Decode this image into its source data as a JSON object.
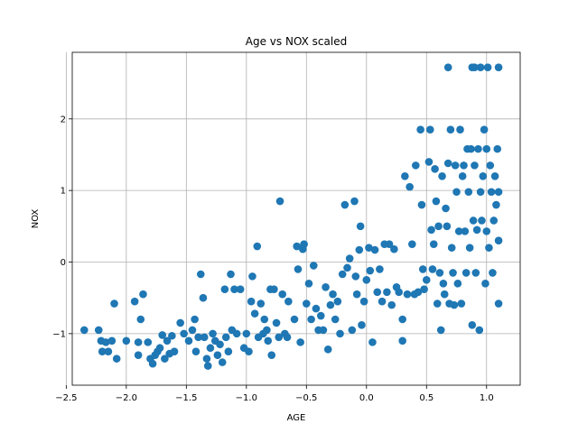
{
  "chart_data": {
    "type": "scatter",
    "title": "Age vs NOX scaled",
    "xlabel": "AGE",
    "ylabel": "NOX",
    "xlim": [
      -2.45,
      1.28
    ],
    "ylim": [
      -1.72,
      2.93
    ],
    "xticks": [
      -2.5,
      -2.0,
      -1.5,
      -1.0,
      -0.5,
      0.0,
      0.5,
      1.0
    ],
    "xtick_labels": [
      "−2.5",
      "−2.0",
      "−1.5",
      "−1.0",
      "−0.5",
      "0.0",
      "0.5",
      "1.0"
    ],
    "yticks": [
      -1,
      0,
      1,
      2
    ],
    "ytick_labels": [
      "−1",
      "0",
      "1",
      "2"
    ],
    "grid": true,
    "point_color": "#1f77b4",
    "points": [
      [
        -2.35,
        -0.95
      ],
      [
        -2.23,
        -0.95
      ],
      [
        -2.21,
        -1.1
      ],
      [
        -2.2,
        -1.25
      ],
      [
        -2.17,
        -1.12
      ],
      [
        -2.15,
        -1.25
      ],
      [
        -2.12,
        -1.1
      ],
      [
        -2.1,
        -0.58
      ],
      [
        -2.08,
        -1.35
      ],
      [
        -2.0,
        -1.1
      ],
      [
        -1.93,
        -0.55
      ],
      [
        -1.9,
        -1.12
      ],
      [
        -1.9,
        -1.3
      ],
      [
        -1.88,
        -0.8
      ],
      [
        -1.86,
        -0.45
      ],
      [
        -1.82,
        -1.12
      ],
      [
        -1.8,
        -1.35
      ],
      [
        -1.78,
        -1.42
      ],
      [
        -1.76,
        -1.3
      ],
      [
        -1.74,
        -1.25
      ],
      [
        -1.72,
        -1.2
      ],
      [
        -1.7,
        -1.02
      ],
      [
        -1.68,
        -1.35
      ],
      [
        -1.66,
        -1.1
      ],
      [
        -1.64,
        -1.28
      ],
      [
        -1.62,
        -1.03
      ],
      [
        -1.6,
        -1.25
      ],
      [
        -1.55,
        -0.85
      ],
      [
        -1.52,
        -1.0
      ],
      [
        -1.48,
        -1.1
      ],
      [
        -1.45,
        -0.95
      ],
      [
        -1.43,
        -0.8
      ],
      [
        -1.42,
        -1.25
      ],
      [
        -1.4,
        -1.05
      ],
      [
        -1.38,
        -0.17
      ],
      [
        -1.36,
        -0.5
      ],
      [
        -1.35,
        -1.05
      ],
      [
        -1.33,
        -1.35
      ],
      [
        -1.32,
        -1.45
      ],
      [
        -1.3,
        -1.2
      ],
      [
        -1.28,
        -1.0
      ],
      [
        -1.26,
        -1.1
      ],
      [
        -1.24,
        -1.3
      ],
      [
        -1.22,
        -1.15
      ],
      [
        -1.2,
        -1.4
      ],
      [
        -1.18,
        -0.38
      ],
      [
        -1.17,
        -1.05
      ],
      [
        -1.15,
        -1.25
      ],
      [
        -1.13,
        -0.17
      ],
      [
        -1.12,
        -0.95
      ],
      [
        -1.1,
        -0.38
      ],
      [
        -1.08,
        -1.0
      ],
      [
        -1.05,
        -0.38
      ],
      [
        -1.02,
        -1.2
      ],
      [
        -1.0,
        -1.0
      ],
      [
        -0.98,
        -1.25
      ],
      [
        -0.96,
        -0.55
      ],
      [
        -0.95,
        -0.2
      ],
      [
        -0.93,
        -0.72
      ],
      [
        -0.91,
        0.22
      ],
      [
        -0.9,
        -1.05
      ],
      [
        -0.88,
        -0.58
      ],
      [
        -0.86,
        -1.0
      ],
      [
        -0.85,
        -0.8
      ],
      [
        -0.83,
        -0.95
      ],
      [
        -0.82,
        -1.1
      ],
      [
        -0.8,
        -0.38
      ],
      [
        -0.79,
        -1.3
      ],
      [
        -0.77,
        -0.38
      ],
      [
        -0.75,
        -0.85
      ],
      [
        -0.73,
        -1.05
      ],
      [
        -0.72,
        0.85
      ],
      [
        -0.7,
        -0.45
      ],
      [
        -0.68,
        -1.0
      ],
      [
        -0.66,
        -1.05
      ],
      [
        -0.65,
        -0.55
      ],
      [
        -0.6,
        -0.8
      ],
      [
        -0.58,
        0.22
      ],
      [
        -0.57,
        -0.1
      ],
      [
        -0.55,
        -1.12
      ],
      [
        -0.53,
        0.18
      ],
      [
        -0.52,
        0.25
      ],
      [
        -0.5,
        -0.58
      ],
      [
        -0.48,
        -0.3
      ],
      [
        -0.46,
        -0.8
      ],
      [
        -0.44,
        -0.05
      ],
      [
        -0.42,
        -0.65
      ],
      [
        -0.4,
        -0.95
      ],
      [
        -0.38,
        -0.75
      ],
      [
        -0.36,
        -0.95
      ],
      [
        -0.34,
        -0.35
      ],
      [
        -0.32,
        -1.22
      ],
      [
        -0.3,
        -0.6
      ],
      [
        -0.28,
        -0.45
      ],
      [
        -0.26,
        -0.8
      ],
      [
        -0.24,
        -0.55
      ],
      [
        -0.22,
        -1.0
      ],
      [
        -0.2,
        -0.17
      ],
      [
        -0.18,
        0.8
      ],
      [
        -0.16,
        -0.08
      ],
      [
        -0.14,
        0.05
      ],
      [
        -0.12,
        -0.95
      ],
      [
        -0.1,
        0.85
      ],
      [
        -0.09,
        -0.2
      ],
      [
        -0.08,
        -0.45
      ],
      [
        -0.06,
        0.17
      ],
      [
        -0.05,
        0.5
      ],
      [
        -0.04,
        -0.88
      ],
      [
        -0.02,
        -0.55
      ],
      [
        0.0,
        -0.25
      ],
      [
        0.02,
        0.2
      ],
      [
        0.03,
        -0.12
      ],
      [
        0.05,
        -1.12
      ],
      [
        0.07,
        0.17
      ],
      [
        0.09,
        -0.42
      ],
      [
        0.11,
        -0.1
      ],
      [
        0.13,
        -0.55
      ],
      [
        0.15,
        0.25
      ],
      [
        0.17,
        -0.42
      ],
      [
        0.19,
        0.25
      ],
      [
        0.21,
        -0.6
      ],
      [
        0.23,
        0.18
      ],
      [
        0.25,
        -0.35
      ],
      [
        0.27,
        -0.42
      ],
      [
        0.3,
        -0.8
      ],
      [
        0.3,
        -1.1
      ],
      [
        0.32,
        1.2
      ],
      [
        0.34,
        -0.45
      ],
      [
        0.36,
        1.05
      ],
      [
        0.38,
        0.25
      ],
      [
        0.4,
        -0.45
      ],
      [
        0.41,
        1.35
      ],
      [
        0.43,
        -0.42
      ],
      [
        0.45,
        1.85
      ],
      [
        0.46,
        0.8
      ],
      [
        0.47,
        -0.1
      ],
      [
        0.48,
        -0.38
      ],
      [
        0.5,
        -0.25
      ],
      [
        0.52,
        1.4
      ],
      [
        0.53,
        1.85
      ],
      [
        0.54,
        0.45
      ],
      [
        0.55,
        -0.1
      ],
      [
        0.56,
        0.25
      ],
      [
        0.57,
        1.3
      ],
      [
        0.58,
        0.85
      ],
      [
        0.59,
        -0.58
      ],
      [
        0.6,
        0.5
      ],
      [
        0.61,
        -0.15
      ],
      [
        0.62,
        -0.95
      ],
      [
        0.63,
        1.2
      ],
      [
        0.64,
        -0.3
      ],
      [
        0.65,
        -0.45
      ],
      [
        0.66,
        0.75
      ],
      [
        0.67,
        0.5
      ],
      [
        0.68,
        2.72
      ],
      [
        0.68,
        1.38
      ],
      [
        0.69,
        -0.58
      ],
      [
        0.7,
        1.85
      ],
      [
        0.71,
        0.2
      ],
      [
        0.72,
        -0.15
      ],
      [
        0.73,
        -0.6
      ],
      [
        0.74,
        1.35
      ],
      [
        0.75,
        0.98
      ],
      [
        0.76,
        -0.3
      ],
      [
        0.77,
        0.43
      ],
      [
        0.78,
        1.85
      ],
      [
        0.79,
        -0.58
      ],
      [
        0.8,
        1.2
      ],
      [
        0.81,
        1.35
      ],
      [
        0.82,
        0.43
      ],
      [
        0.83,
        -0.15
      ],
      [
        0.84,
        1.58
      ],
      [
        0.85,
        0.98
      ],
      [
        0.86,
        0.2
      ],
      [
        0.87,
        1.58
      ],
      [
        0.88,
        2.72
      ],
      [
        0.88,
        -0.88
      ],
      [
        0.89,
        0.58
      ],
      [
        0.9,
        2.72
      ],
      [
        0.9,
        1.35
      ],
      [
        0.91,
        -0.15
      ],
      [
        0.92,
        0.45
      ],
      [
        0.93,
        1.58
      ],
      [
        0.94,
        -0.95
      ],
      [
        0.95,
        2.72
      ],
      [
        0.95,
        0.98
      ],
      [
        0.96,
        0.58
      ],
      [
        0.97,
        1.2
      ],
      [
        0.98,
        1.85
      ],
      [
        0.99,
        -0.3
      ],
      [
        1.0,
        1.58
      ],
      [
        1.0,
        0.43
      ],
      [
        1.01,
        2.72
      ],
      [
        1.02,
        0.2
      ],
      [
        1.03,
        1.35
      ],
      [
        1.04,
        0.98
      ],
      [
        1.05,
        -0.15
      ],
      [
        1.06,
        0.58
      ],
      [
        1.07,
        1.2
      ],
      [
        1.08,
        0.8
      ],
      [
        1.09,
        1.58
      ],
      [
        1.1,
        2.72
      ],
      [
        1.1,
        0.3
      ],
      [
        1.1,
        -0.58
      ],
      [
        1.1,
        0.98
      ]
    ]
  }
}
